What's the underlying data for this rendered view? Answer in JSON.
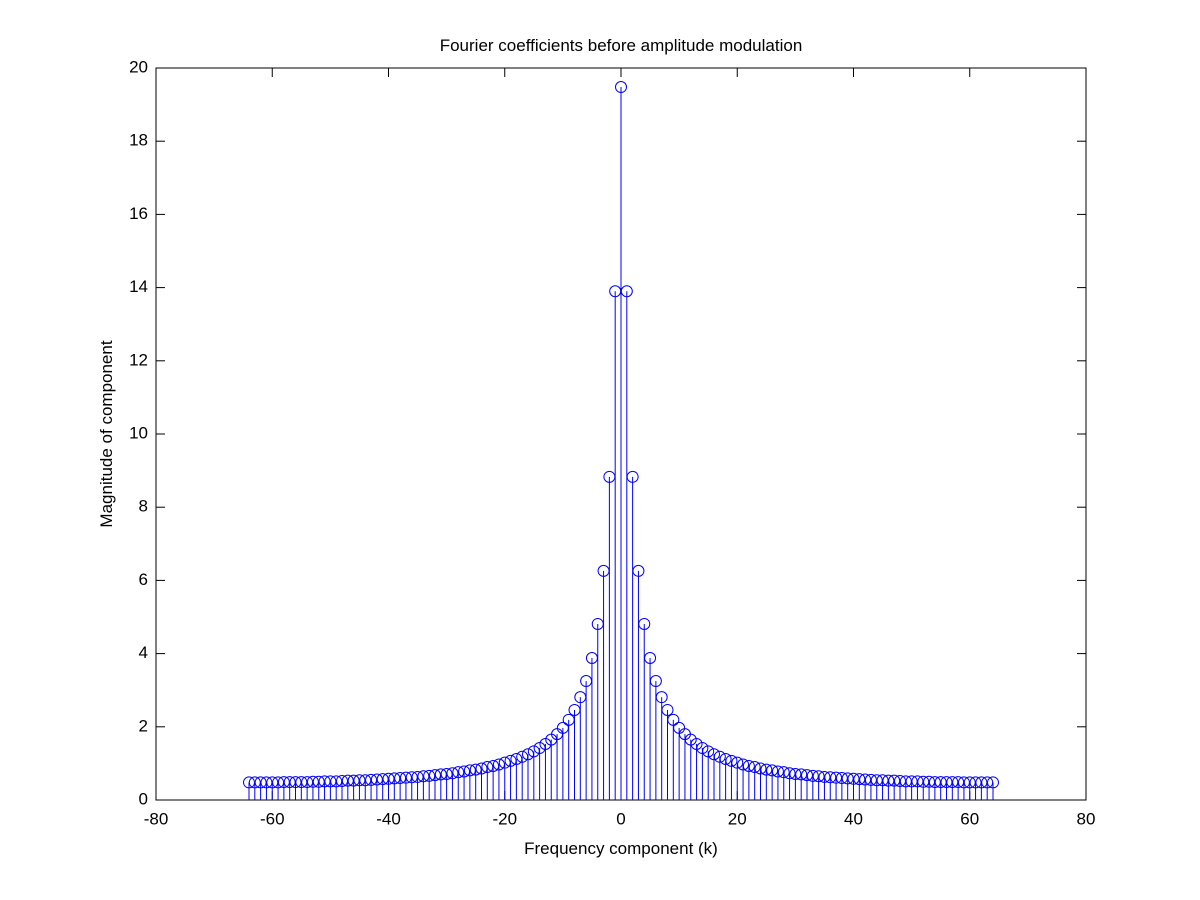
{
  "chart_data": {
    "type": "stem",
    "title": "Fourier coefficients before amplitude modulation",
    "x_label": "Frequency component (k)",
    "y_label": "Magnitude of component",
    "color": "#0000ff",
    "marker": "circle",
    "box": true,
    "xlim": [
      -80,
      80
    ],
    "xticks": [
      -80,
      -60,
      -40,
      -20,
      0,
      20,
      40,
      60,
      80
    ],
    "ylim": [
      0,
      20
    ],
    "yticks": [
      0,
      2,
      4,
      6,
      8,
      10,
      12,
      14,
      16,
      18,
      20
    ],
    "x": [
      -64,
      -63,
      -62,
      -61,
      -60,
      -59,
      -58,
      -57,
      -56,
      -55,
      -54,
      -53,
      -52,
      -51,
      -50,
      -49,
      -48,
      -47,
      -46,
      -45,
      -44,
      -43,
      -42,
      -41,
      -40,
      -39,
      -38,
      -37,
      -36,
      -35,
      -34,
      -33,
      -32,
      -31,
      -30,
      -29,
      -28,
      -27,
      -26,
      -25,
      -24,
      -23,
      -22,
      -21,
      -20,
      -19,
      -18,
      -17,
      -16,
      -15,
      -14,
      -13,
      -12,
      -11,
      -10,
      -9,
      -8,
      -7,
      -6,
      -5,
      -4,
      -3,
      -2,
      -1,
      0,
      1,
      2,
      3,
      4,
      5,
      6,
      7,
      8,
      9,
      10,
      11,
      12,
      13,
      14,
      15,
      16,
      17,
      18,
      19,
      20,
      21,
      22,
      23,
      24,
      25,
      26,
      27,
      28,
      29,
      30,
      31,
      32,
      33,
      34,
      35,
      36,
      37,
      38,
      39,
      40,
      41,
      42,
      43,
      44,
      45,
      46,
      47,
      48,
      49,
      50,
      51,
      52,
      53,
      54,
      55,
      56,
      57,
      58,
      59,
      60,
      61,
      62,
      63,
      64
    ],
    "values": [
      0.48,
      0.48,
      0.48,
      0.48,
      0.48,
      0.48,
      0.49,
      0.49,
      0.49,
      0.49,
      0.49,
      0.5,
      0.5,
      0.51,
      0.51,
      0.51,
      0.52,
      0.53,
      0.53,
      0.54,
      0.54,
      0.55,
      0.56,
      0.57,
      0.58,
      0.59,
      0.6,
      0.61,
      0.62,
      0.63,
      0.65,
      0.66,
      0.68,
      0.7,
      0.71,
      0.73,
      0.76,
      0.78,
      0.81,
      0.83,
      0.86,
      0.9,
      0.93,
      0.97,
      1.02,
      1.07,
      1.12,
      1.18,
      1.25,
      1.33,
      1.42,
      1.53,
      1.65,
      1.8,
      1.97,
      2.19,
      2.46,
      2.81,
      3.25,
      3.88,
      4.81,
      6.26,
      8.83,
      13.9,
      19.48,
      13.9,
      8.83,
      6.26,
      4.81,
      3.88,
      3.25,
      2.81,
      2.46,
      2.19,
      1.97,
      1.8,
      1.65,
      1.53,
      1.42,
      1.33,
      1.25,
      1.18,
      1.12,
      1.07,
      1.02,
      0.97,
      0.93,
      0.9,
      0.86,
      0.83,
      0.81,
      0.78,
      0.76,
      0.73,
      0.71,
      0.7,
      0.68,
      0.66,
      0.65,
      0.63,
      0.62,
      0.61,
      0.6,
      0.59,
      0.58,
      0.57,
      0.56,
      0.55,
      0.54,
      0.54,
      0.53,
      0.53,
      0.52,
      0.51,
      0.51,
      0.51,
      0.5,
      0.5,
      0.49,
      0.49,
      0.49,
      0.49,
      0.49,
      0.48,
      0.48,
      0.48,
      0.48,
      0.48,
      0.48
    ]
  }
}
